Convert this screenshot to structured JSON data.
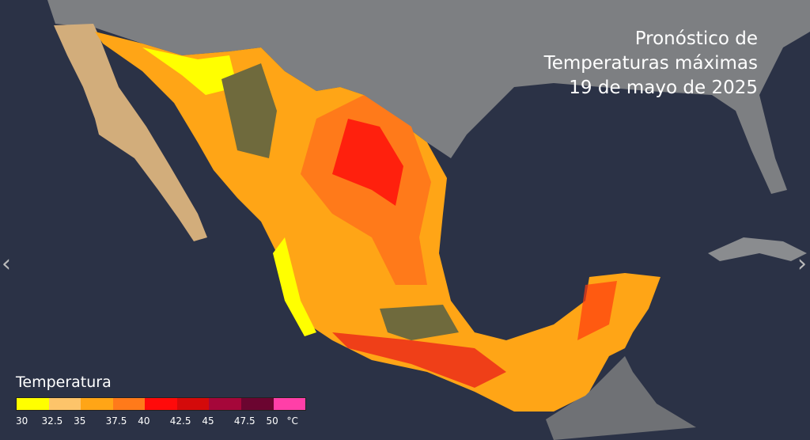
{
  "title": {
    "line1": "Pronóstico de",
    "line2": "Temperaturas máximas",
    "line3": "19 de mayo de 2025"
  },
  "legend": {
    "title": "Temperatura",
    "unit": "°C",
    "ticks": [
      "30",
      "32.5",
      "35",
      "37.5",
      "40",
      "42.5",
      "45",
      "47.5",
      "50"
    ],
    "colors": [
      "#ffff00",
      "#fdc46a",
      "#ffa516",
      "#ff7a1a",
      "#ff0a0a",
      "#d40a0a",
      "#a5073a",
      "#6b0530",
      "#ff3fa8"
    ]
  },
  "nav": {
    "prev": "‹",
    "next": "›"
  },
  "colors": {
    "ocean": "#2b3246",
    "land": "#7d7f82",
    "low": "#6f6a3d"
  }
}
